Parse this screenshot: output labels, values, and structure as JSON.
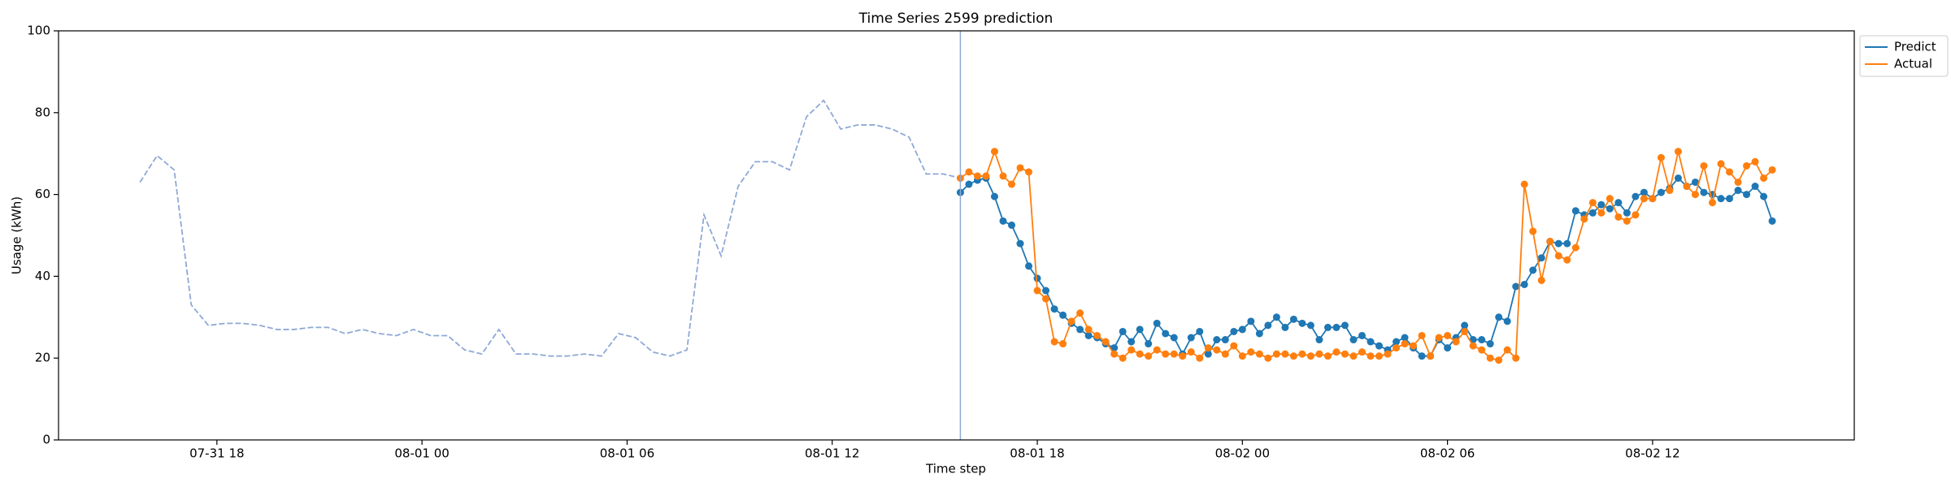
{
  "chart_data": {
    "type": "line",
    "title": "Time Series 2599 prediction",
    "xlabel": "Time step",
    "ylabel": "Usage (kWh)",
    "ylim": [
      0,
      100
    ],
    "yticks": [
      0,
      20,
      40,
      60,
      80,
      100
    ],
    "xlim": [
      "07-31 13:22",
      "08-02 17:54"
    ],
    "xticks": [
      "07-31 18",
      "08-01 00",
      "08-01 06",
      "08-01 12",
      "08-01 18",
      "08-02 00",
      "08-02 06",
      "08-02 12"
    ],
    "vline": "08-01 15:45",
    "vline_color": "#8fa9d6",
    "grid": false,
    "legend": "outside-upper-right",
    "x": [
      "08-01 15:45",
      "08-01 16:00",
      "08-01 16:15",
      "08-01 16:30",
      "08-01 16:45",
      "08-01 17:00",
      "08-01 17:15",
      "08-01 17:30",
      "08-01 17:45",
      "08-01 18:00",
      "08-01 18:15",
      "08-01 18:30",
      "08-01 18:45",
      "08-01 19:00",
      "08-01 19:15",
      "08-01 19:30",
      "08-01 19:45",
      "08-01 20:00",
      "08-01 20:15",
      "08-01 20:30",
      "08-01 20:45",
      "08-01 21:00",
      "08-01 21:15",
      "08-01 21:30",
      "08-01 21:45",
      "08-01 22:00",
      "08-01 22:15",
      "08-01 22:30",
      "08-01 22:45",
      "08-01 23:00",
      "08-01 23:15",
      "08-01 23:30",
      "08-01 23:45",
      "08-02 00:00",
      "08-02 00:15",
      "08-02 00:30",
      "08-02 00:45",
      "08-02 01:00",
      "08-02 01:15",
      "08-02 01:30",
      "08-02 01:45",
      "08-02 02:00",
      "08-02 02:15",
      "08-02 02:30",
      "08-02 02:45",
      "08-02 03:00",
      "08-02 03:15",
      "08-02 03:30",
      "08-02 03:45",
      "08-02 04:00",
      "08-02 04:15",
      "08-02 04:30",
      "08-02 04:45",
      "08-02 05:00",
      "08-02 05:15",
      "08-02 05:30",
      "08-02 05:45",
      "08-02 06:00",
      "08-02 06:15",
      "08-02 06:30",
      "08-02 06:45",
      "08-02 07:00",
      "08-02 07:15",
      "08-02 07:30",
      "08-02 07:45",
      "08-02 08:00",
      "08-02 08:15",
      "08-02 08:30",
      "08-02 08:45",
      "08-02 09:00",
      "08-02 09:15",
      "08-02 09:30",
      "08-02 09:45",
      "08-02 10:00",
      "08-02 10:15",
      "08-02 10:30",
      "08-02 10:45",
      "08-02 11:00",
      "08-02 11:15",
      "08-02 11:30",
      "08-02 11:45",
      "08-02 12:00",
      "08-02 12:15",
      "08-02 12:30",
      "08-02 12:45",
      "08-02 13:00",
      "08-02 13:15",
      "08-02 13:30",
      "08-02 13:45",
      "08-02 14:00",
      "08-02 14:15",
      "08-02 14:30",
      "08-02 14:45",
      "08-02 15:00",
      "08-02 15:15",
      "08-02 15:30"
    ],
    "series": [
      {
        "color": "#8fa9d6",
        "linestyle": "dashed",
        "markers": false,
        "x": [
          "07-31 15:45",
          "07-31 16:15",
          "07-31 16:45",
          "07-31 17:15",
          "07-31 17:45",
          "07-31 18:15",
          "07-31 18:45",
          "07-31 19:15",
          "07-31 19:45",
          "07-31 20:15",
          "07-31 20:45",
          "07-31 21:15",
          "07-31 21:45",
          "07-31 22:15",
          "07-31 22:45",
          "07-31 23:15",
          "07-31 23:45",
          "08-01 00:15",
          "08-01 00:45",
          "08-01 01:15",
          "08-01 01:45",
          "08-01 02:15",
          "08-01 02:45",
          "08-01 03:15",
          "08-01 03:45",
          "08-01 04:15",
          "08-01 04:45",
          "08-01 05:15",
          "08-01 05:45",
          "08-01 06:15",
          "08-01 06:45",
          "08-01 07:15",
          "08-01 07:45",
          "08-01 08:15",
          "08-01 08:45",
          "08-01 09:15",
          "08-01 09:45",
          "08-01 10:15",
          "08-01 10:45",
          "08-01 11:15",
          "08-01 11:45",
          "08-01 12:15",
          "08-01 12:45",
          "08-01 13:15",
          "08-01 13:45",
          "08-01 14:15",
          "08-01 14:45",
          "08-01 15:15",
          "08-01 15:45"
        ],
        "values": [
          63,
          69.5,
          66,
          33,
          28,
          28.5,
          28.5,
          28,
          27,
          27,
          27.5,
          27.5,
          26,
          27,
          26,
          25.5,
          27,
          25.5,
          25.5,
          22,
          21,
          27,
          21,
          21,
          20.5,
          20.5,
          21,
          20.5,
          26,
          25,
          21.5,
          20.5,
          22,
          55,
          45,
          62,
          68,
          68,
          66,
          79,
          83,
          76,
          77,
          77,
          76,
          74,
          65,
          65,
          64
        ]
      },
      {
        "name": "Predict",
        "color": "#1f77b4",
        "linestyle": "solid",
        "markers": true,
        "values": [
          60.5,
          62.5,
          63.5,
          64,
          59.5,
          53.5,
          52.5,
          48,
          42.5,
          39.5,
          36.5,
          32,
          30.5,
          28.5,
          27,
          25.5,
          25,
          23.5,
          22.5,
          26.5,
          24,
          27,
          23.5,
          28.5,
          26,
          25,
          21,
          25,
          26.5,
          21,
          24.5,
          24.5,
          26.5,
          27,
          29,
          26,
          28,
          30,
          27.5,
          29.5,
          28.5,
          28,
          24.5,
          27.5,
          27.5,
          28,
          24.5,
          25.5,
          24,
          23,
          22,
          24,
          25,
          22.5,
          20.5,
          20.5,
          24.5,
          22.5,
          25,
          28,
          24.5,
          24.5,
          23.5,
          30,
          29,
          37.5,
          38,
          41.5,
          44.5,
          48.5,
          48,
          48,
          56,
          55,
          55.5,
          57.5,
          56.5,
          58,
          55.5,
          59.5,
          60.5,
          59,
          60.5,
          61.5,
          64,
          62,
          63,
          60.5,
          60,
          59,
          59,
          61,
          60,
          62,
          59.5,
          53.5
        ]
      },
      {
        "name": "Actual",
        "color": "#ff7f0e",
        "linestyle": "solid",
        "markers": true,
        "values": [
          64,
          65.5,
          64.5,
          64.5,
          70.5,
          64.5,
          62.5,
          66.5,
          65.5,
          36.5,
          34.5,
          24,
          23.5,
          29,
          31,
          27,
          25.5,
          24,
          21,
          20,
          22,
          21,
          20.5,
          22,
          21,
          21,
          20.5,
          21.5,
          20,
          22.5,
          22,
          21,
          23,
          20.5,
          21.5,
          21,
          20,
          21,
          21,
          20.5,
          21,
          20.5,
          21,
          20.5,
          21.5,
          21,
          20.5,
          21.5,
          20.5,
          20.5,
          21,
          22.5,
          23.5,
          23,
          25.5,
          20.5,
          25,
          25.5,
          24,
          26.5,
          23,
          22,
          20,
          19.5,
          22,
          20,
          62.5,
          51,
          39,
          48.5,
          45,
          44,
          47,
          54,
          58,
          55.5,
          59,
          54.5,
          53.5,
          55,
          59,
          59,
          69,
          61,
          70.5,
          62,
          60,
          67,
          58,
          67.5,
          65.5,
          63,
          67,
          68,
          64,
          66
        ]
      }
    ]
  }
}
